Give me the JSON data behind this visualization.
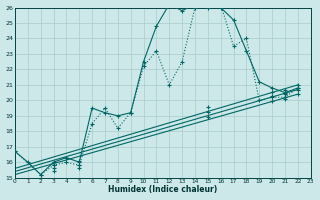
{
  "xlabel": "Humidex (Indice chaleur)",
  "bg_color": "#cce8e8",
  "grid_color": "#aacccc",
  "line_color": "#006666",
  "xlim": [
    0,
    23
  ],
  "ylim": [
    15,
    26
  ],
  "xticks": [
    0,
    1,
    2,
    3,
    4,
    5,
    6,
    7,
    8,
    9,
    10,
    11,
    12,
    13,
    14,
    15,
    16,
    17,
    18,
    19,
    20,
    21,
    22,
    23
  ],
  "yticks": [
    15,
    16,
    17,
    18,
    19,
    20,
    21,
    22,
    23,
    24,
    25,
    26
  ],
  "curve1_x": [
    0,
    1,
    2,
    3,
    4,
    5,
    6,
    7,
    8,
    9,
    10,
    11,
    12,
    13,
    14,
    15,
    16,
    17,
    18,
    19,
    20,
    21,
    22
  ],
  "curve1_y": [
    16.7,
    16.0,
    15.2,
    16.0,
    16.3,
    16.0,
    19.5,
    19.2,
    19.0,
    19.2,
    22.5,
    24.8,
    26.2,
    25.8,
    26.2,
    26.2,
    26.0,
    25.2,
    23.2,
    21.2,
    20.8,
    20.5,
    20.8
  ],
  "curve2_x": [
    0,
    2,
    3,
    4,
    5,
    6,
    7,
    8,
    9,
    10,
    11,
    12,
    13,
    14,
    15,
    16,
    17,
    18,
    19,
    20,
    21,
    22
  ],
  "curve2_y": [
    16.7,
    15.2,
    15.8,
    16.0,
    15.8,
    18.5,
    19.5,
    18.2,
    19.2,
    22.2,
    23.2,
    21.0,
    22.5,
    26.0,
    26.0,
    26.2,
    23.5,
    24.0,
    20.0,
    20.2,
    20.2,
    20.8
  ],
  "line3_x": [
    0,
    22
  ],
  "line3_y": [
    15.6,
    21.0
  ],
  "line4_x": [
    0,
    22
  ],
  "line4_y": [
    15.4,
    20.7
  ],
  "line5_x": [
    0,
    22
  ],
  "line5_y": [
    15.2,
    20.4
  ],
  "marker3_x": [
    3,
    5,
    15,
    20,
    21,
    22
  ],
  "marker3_y": [
    15.85,
    16.05,
    19.55,
    20.55,
    20.7,
    21.0
  ],
  "marker4_x": [
    3,
    5,
    15,
    20,
    21,
    22
  ],
  "marker4_y": [
    15.65,
    15.85,
    19.25,
    20.25,
    20.4,
    20.7
  ],
  "marker5_x": [
    3,
    5,
    15,
    20,
    21,
    22
  ],
  "marker5_y": [
    15.45,
    15.65,
    18.95,
    19.95,
    20.1,
    20.4
  ]
}
